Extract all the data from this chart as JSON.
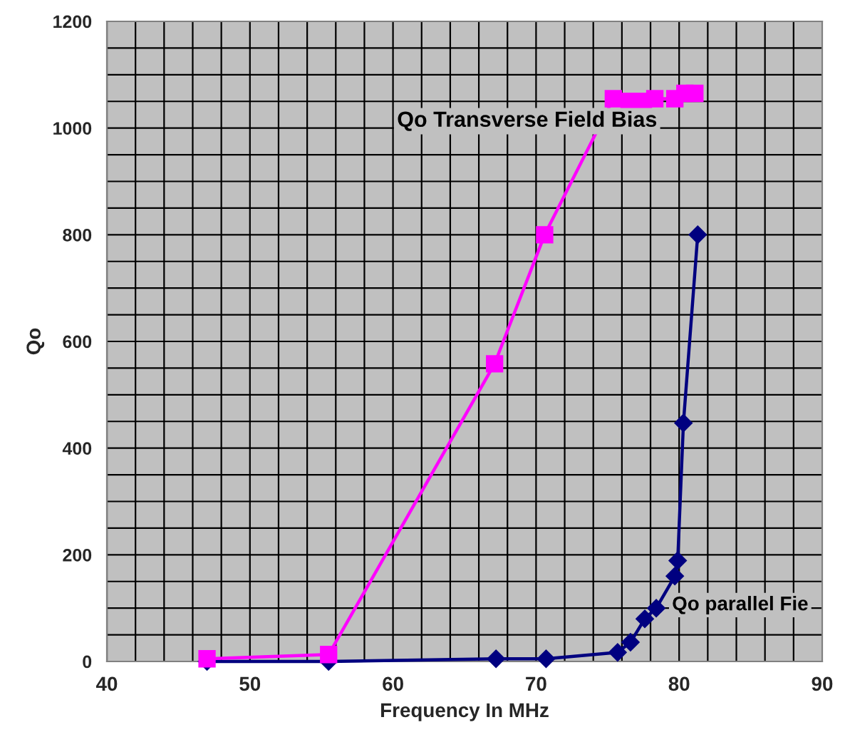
{
  "chart_data": {
    "type": "line",
    "xlabel": "Frequency In MHz",
    "ylabel": "Qo",
    "xlim": [
      40,
      90
    ],
    "xticks": [
      40,
      50,
      60,
      70,
      80,
      90
    ],
    "ylim": [
      0,
      1200
    ],
    "yticks": [
      0,
      200,
      400,
      600,
      800,
      1000,
      1200
    ],
    "grid": true,
    "legend": false,
    "series": [
      {
        "name": "Qo Transverse Field Bias",
        "color": "#ff00ff",
        "marker": "square",
        "x": [
          47.0,
          55.5,
          67.1,
          70.6,
          75.4,
          76.5,
          77.5,
          78.3,
          79.7,
          80.4,
          81.1
        ],
        "values": [
          5,
          13,
          558,
          800,
          1055,
          1050,
          1050,
          1055,
          1055,
          1065,
          1065
        ]
      },
      {
        "name": "Qo parallel Fie",
        "color": "#000080",
        "marker": "diamond",
        "x": [
          47.0,
          55.5,
          67.2,
          70.7,
          75.7,
          76.6,
          77.6,
          78.4,
          79.7,
          79.9,
          80.3,
          81.3
        ],
        "values": [
          0,
          0,
          5,
          5,
          17,
          36,
          80,
          100,
          160,
          189,
          447,
          800
        ]
      }
    ]
  }
}
